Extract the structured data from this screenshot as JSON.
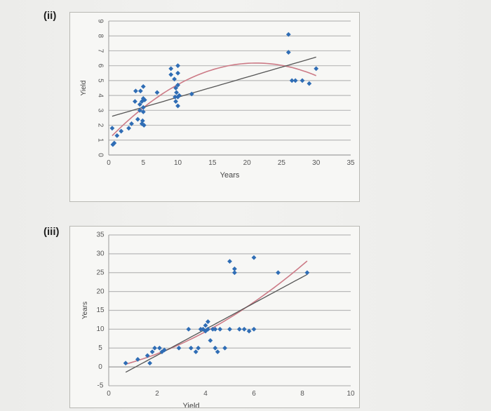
{
  "parts": [
    {
      "label": "(ii)"
    },
    {
      "label": "(iii)"
    }
  ],
  "colors": {
    "point": "#2f6db5",
    "fit_linear": "#555555",
    "fit_curve": "#cc7a86",
    "grid": "#b9b9b9"
  },
  "chart_data": [
    {
      "type": "scatter",
      "xlabel": "Years",
      "ylabel": "Yield",
      "xlim": [
        0,
        35
      ],
      "ylim": [
        0,
        9
      ],
      "x_ticks": [
        "0",
        "5",
        "10",
        "15",
        "20",
        "25",
        "30",
        "35"
      ],
      "y_ticks": [
        "0",
        "1",
        "2",
        "3",
        "4",
        "5",
        "6",
        "7",
        "8",
        "9"
      ],
      "grid": "horizontal",
      "trendlines": [
        "linear",
        "polynomial"
      ],
      "points": [
        {
          "x": 0.5,
          "y": 1.8
        },
        {
          "x": 0.6,
          "y": 0.7
        },
        {
          "x": 0.8,
          "y": 0.8
        },
        {
          "x": 1.2,
          "y": 1.3
        },
        {
          "x": 1.8,
          "y": 1.6
        },
        {
          "x": 2.9,
          "y": 1.8
        },
        {
          "x": 3.3,
          "y": 2.1
        },
        {
          "x": 3.8,
          "y": 3.6
        },
        {
          "x": 3.9,
          "y": 4.3
        },
        {
          "x": 4.2,
          "y": 2.4
        },
        {
          "x": 4.5,
          "y": 3.0
        },
        {
          "x": 4.5,
          "y": 3.4
        },
        {
          "x": 4.6,
          "y": 4.3
        },
        {
          "x": 4.8,
          "y": 2.1
        },
        {
          "x": 4.8,
          "y": 3.6
        },
        {
          "x": 4.9,
          "y": 2.3
        },
        {
          "x": 5.0,
          "y": 2.9
        },
        {
          "x": 5.0,
          "y": 3.2
        },
        {
          "x": 5.0,
          "y": 3.8
        },
        {
          "x": 5.0,
          "y": 4.6
        },
        {
          "x": 5.1,
          "y": 2.0
        },
        {
          "x": 5.2,
          "y": 3.7
        },
        {
          "x": 7.0,
          "y": 4.2
        },
        {
          "x": 9.0,
          "y": 5.4
        },
        {
          "x": 9.0,
          "y": 5.8
        },
        {
          "x": 9.5,
          "y": 5.1
        },
        {
          "x": 9.6,
          "y": 3.9
        },
        {
          "x": 9.7,
          "y": 3.6
        },
        {
          "x": 9.7,
          "y": 4.5
        },
        {
          "x": 9.8,
          "y": 4.2
        },
        {
          "x": 10.0,
          "y": 5.5
        },
        {
          "x": 10.0,
          "y": 6.0
        },
        {
          "x": 10.0,
          "y": 3.9
        },
        {
          "x": 10.0,
          "y": 4.7
        },
        {
          "x": 10.0,
          "y": 3.3
        },
        {
          "x": 10.2,
          "y": 4.0
        },
        {
          "x": 12.0,
          "y": 4.1
        },
        {
          "x": 26.0,
          "y": 8.1
        },
        {
          "x": 26.0,
          "y": 6.9
        },
        {
          "x": 26.5,
          "y": 5.0
        },
        {
          "x": 27.0,
          "y": 5.0
        },
        {
          "x": 28.0,
          "y": 5.0
        },
        {
          "x": 29.0,
          "y": 4.8
        },
        {
          "x": 30.0,
          "y": 5.8
        }
      ]
    },
    {
      "type": "scatter",
      "xlabel": "Yield",
      "ylabel": "Years",
      "xlim": [
        0,
        10
      ],
      "ylim": [
        -5,
        35
      ],
      "x_ticks": [
        "0",
        "2",
        "4",
        "6",
        "8",
        "10"
      ],
      "y_ticks": [
        "-5",
        "0",
        "5",
        "10",
        "15",
        "20",
        "25",
        "30",
        "35"
      ],
      "grid": "horizontal",
      "trendlines": [
        "linear",
        "polynomial"
      ],
      "points": [
        {
          "x": 0.7,
          "y": 1
        },
        {
          "x": 1.2,
          "y": 2
        },
        {
          "x": 1.6,
          "y": 3
        },
        {
          "x": 1.7,
          "y": 1
        },
        {
          "x": 1.8,
          "y": 4
        },
        {
          "x": 1.9,
          "y": 5
        },
        {
          "x": 2.1,
          "y": 5
        },
        {
          "x": 2.2,
          "y": 4
        },
        {
          "x": 2.3,
          "y": 4.5
        },
        {
          "x": 2.9,
          "y": 5
        },
        {
          "x": 3.3,
          "y": 10
        },
        {
          "x": 3.4,
          "y": 5
        },
        {
          "x": 3.6,
          "y": 4
        },
        {
          "x": 3.7,
          "y": 5
        },
        {
          "x": 3.8,
          "y": 10
        },
        {
          "x": 3.9,
          "y": 10
        },
        {
          "x": 4.0,
          "y": 9.5
        },
        {
          "x": 4.0,
          "y": 11
        },
        {
          "x": 4.1,
          "y": 10
        },
        {
          "x": 4.1,
          "y": 12
        },
        {
          "x": 4.2,
          "y": 7
        },
        {
          "x": 4.3,
          "y": 10
        },
        {
          "x": 4.4,
          "y": 10
        },
        {
          "x": 4.4,
          "y": 5
        },
        {
          "x": 4.5,
          "y": 4
        },
        {
          "x": 4.6,
          "y": 10
        },
        {
          "x": 4.8,
          "y": 5
        },
        {
          "x": 5.0,
          "y": 28
        },
        {
          "x": 5.0,
          "y": 10
        },
        {
          "x": 5.2,
          "y": 26
        },
        {
          "x": 5.2,
          "y": 25
        },
        {
          "x": 5.4,
          "y": 10
        },
        {
          "x": 5.6,
          "y": 10
        },
        {
          "x": 5.8,
          "y": 9.5
        },
        {
          "x": 6.0,
          "y": 10
        },
        {
          "x": 6.0,
          "y": 29
        },
        {
          "x": 7.0,
          "y": 25
        },
        {
          "x": 8.2,
          "y": 25
        }
      ]
    }
  ]
}
